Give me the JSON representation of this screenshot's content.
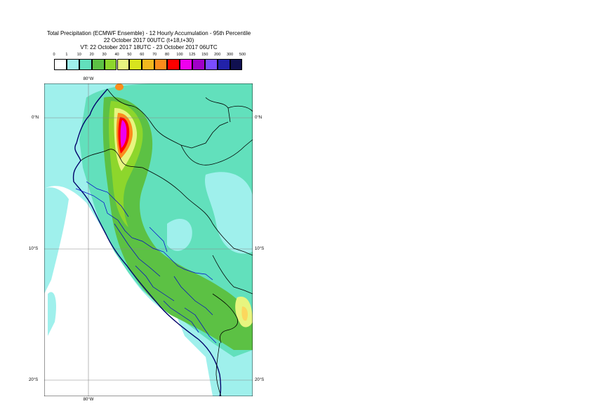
{
  "title": {
    "line1": "Total Precipitation (ECMWF Ensemble) - 12 Hourly Accumulation - 95th Percentile",
    "line2": "22 October 2017 00UTC (t+18,t+30)",
    "line3": "VT: 22 October 2017 18UTC - 23 October 2017 06UTC"
  },
  "legend": {
    "labels": [
      "0",
      "1",
      "10",
      "20",
      "30",
      "40",
      "50",
      "60",
      "70",
      "80",
      "100",
      "125",
      "150",
      "200",
      "300",
      "500"
    ],
    "colors": [
      "#ffffff",
      "#9ff0ec",
      "#62e0bc",
      "#5cc144",
      "#8dd62c",
      "#e7f57f",
      "#d8e41e",
      "#f2b81e",
      "#fb8c1c",
      "#ff0000",
      "#ee00ee",
      "#a000c8",
      "#7a4cff",
      "#2222aa",
      "#101050"
    ]
  },
  "axes": {
    "lon_top": "80°W",
    "lon_bottom": "80°W",
    "lat_left": [
      "0°N",
      "10°S",
      "20°S"
    ],
    "lat_right": [
      "0°N",
      "10°S",
      "20°S"
    ]
  }
}
